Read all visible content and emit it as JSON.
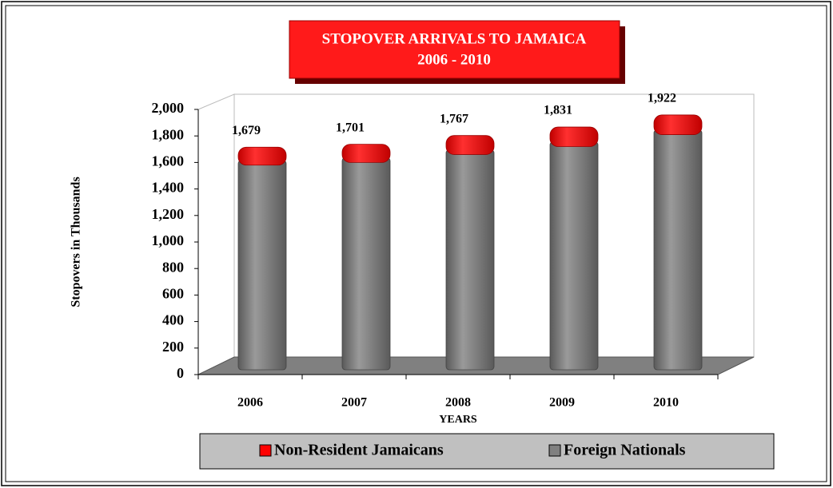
{
  "chart_data": {
    "type": "bar",
    "stacked": true,
    "title": "STOPOVER ARRIVALS TO JAMAICA",
    "subtitle": "2006 - 2010",
    "xlabel": "YEARS",
    "ylabel": "Stopovers in Thousands",
    "categories": [
      "2006",
      "2007",
      "2008",
      "2009",
      "2010"
    ],
    "series": [
      {
        "name": "Foreign Nationals",
        "color": "#808080",
        "values": [
          1580,
          1600,
          1660,
          1720,
          1810
        ]
      },
      {
        "name": "Non-Resident Jamaicans",
        "color": "#ff0000",
        "values": [
          99,
          101,
          107,
          111,
          112
        ]
      }
    ],
    "totals": [
      1679,
      1701,
      1767,
      1831,
      1922
    ],
    "total_labels": [
      "1,679",
      "1,701",
      "1,767",
      "1,831",
      "1,922"
    ],
    "ylim": [
      0,
      2000
    ],
    "yticks": [
      0,
      200,
      400,
      600,
      800,
      {
        "value": 1000,
        "label": "1,000"
      },
      {
        "value": 1200,
        "label": "1,200"
      },
      {
        "value": 1400,
        "label": "1,400"
      },
      {
        "value": 1600,
        "label": "1,600"
      },
      {
        "value": 1800,
        "label": "1,800"
      },
      {
        "value": 2000,
        "label": "2,000"
      }
    ],
    "legend": "bottom"
  }
}
